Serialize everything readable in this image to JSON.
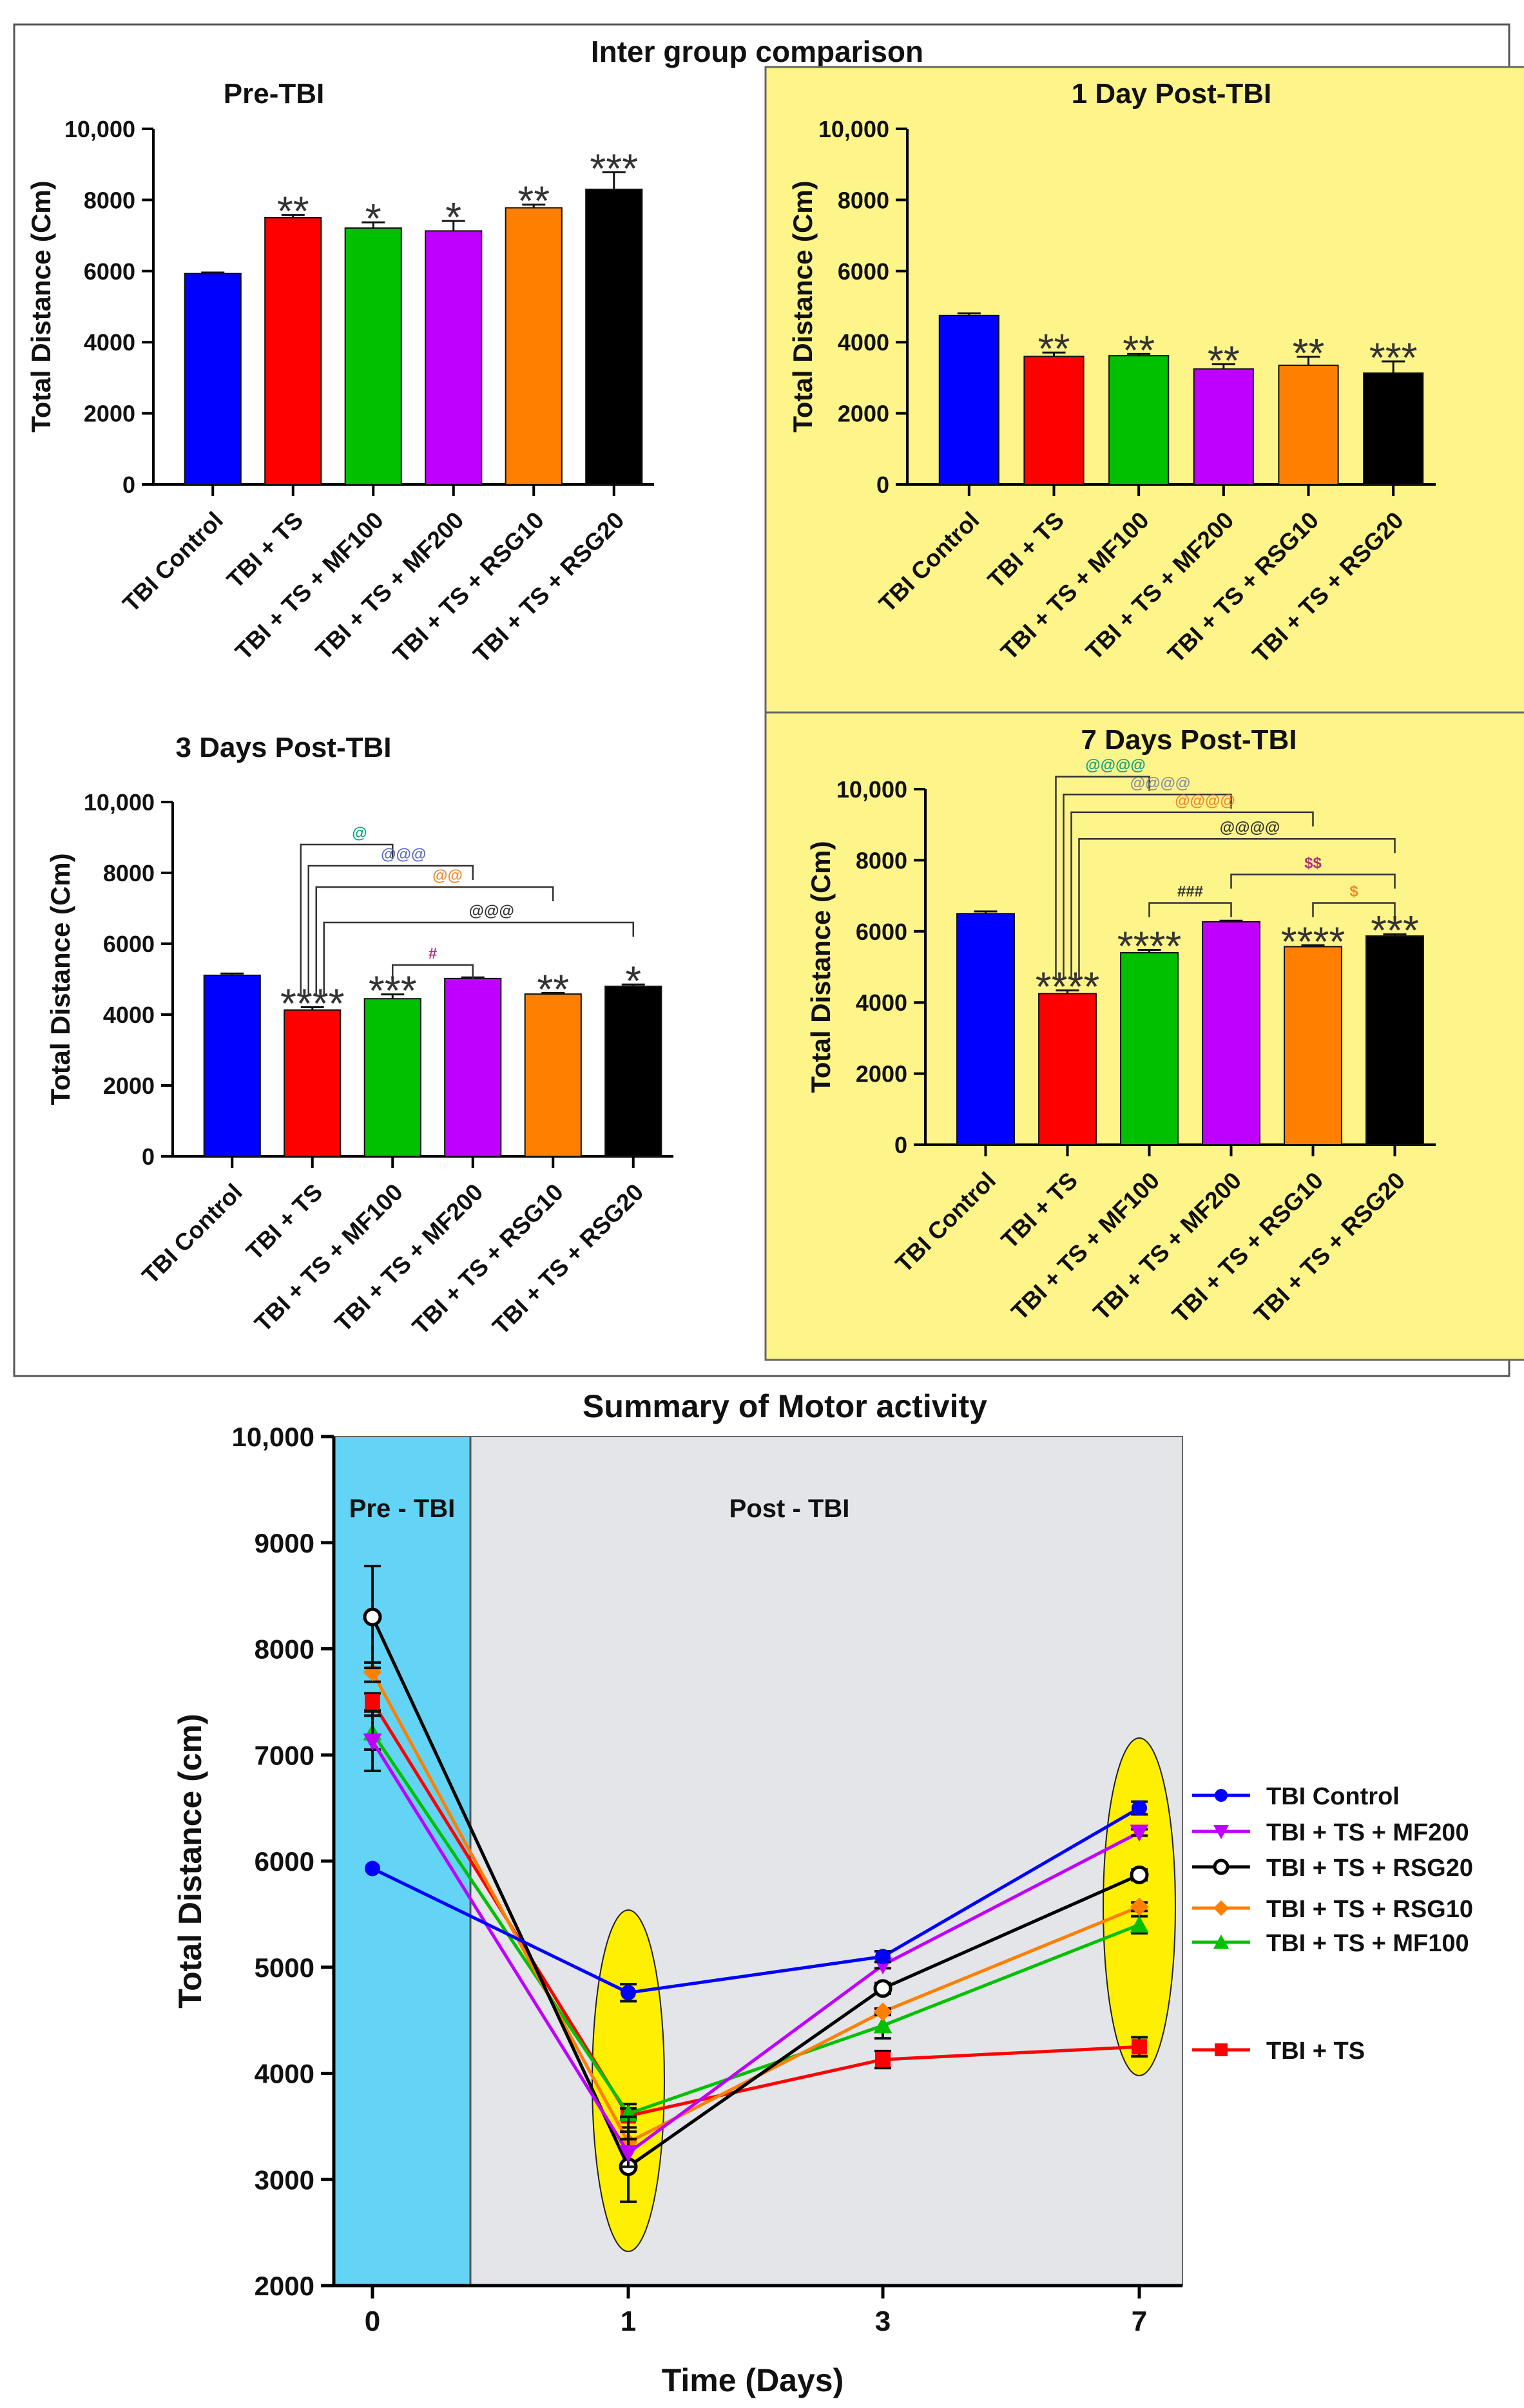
{
  "figure": {
    "top_title": "Inter group comparison",
    "colors": {
      "TBI Control": "#0000ff",
      "TBI + TS": "#ff0000",
      "TBI + TS + MF100": "#00c000",
      "TBI + TS + MF200": "#c000ff",
      "TBI + TS + RSG10": "#ff8000",
      "TBI + TS + RSG20": "#000000",
      "panel_highlight": "#fdf48a",
      "pre_region": "#63d4f6",
      "post_region": "#e3e5e8",
      "ellipse": "#ffef00"
    }
  },
  "chart_data": [
    {
      "type": "bar",
      "title": "Pre-TBI",
      "ylabel": "Total Distance (Cm)",
      "ylim": [
        0,
        10000
      ],
      "yticks": [
        "0",
        "2000",
        "4000",
        "6000",
        "8000",
        "10,000"
      ],
      "categories": [
        "TBI Control",
        "TBI + TS",
        "TBI + TS + MF100",
        "TBI + TS + MF200",
        "TBI + TS + RSG10",
        "TBI + TS + RSG20"
      ],
      "values": [
        5930,
        7500,
        7210,
        7130,
        7780,
        8300
      ],
      "errors": [
        30,
        80,
        160,
        280,
        90,
        480
      ],
      "stars": [
        "",
        "**",
        "*",
        "*",
        "**",
        "***"
      ],
      "brackets": []
    },
    {
      "type": "bar",
      "title": "1 Day Post-TBI",
      "ylabel": "Total Distance (Cm)",
      "ylim": [
        0,
        10000
      ],
      "yticks": [
        "0",
        "2000",
        "4000",
        "6000",
        "8000",
        "10,000"
      ],
      "categories": [
        "TBI Control",
        "TBI + TS",
        "TBI + TS + MF100",
        "TBI + TS + MF200",
        "TBI + TS + RSG10",
        "TBI + TS + RSG20"
      ],
      "values": [
        4750,
        3600,
        3620,
        3250,
        3350,
        3130
      ],
      "errors": [
        60,
        110,
        50,
        130,
        240,
        330
      ],
      "stars": [
        "",
        "**",
        "**",
        "**",
        "**",
        "***"
      ],
      "brackets": []
    },
    {
      "type": "bar",
      "title": "3 Days Post-TBI",
      "ylabel": "Total Distance (Cm)",
      "ylim": [
        0,
        10000
      ],
      "yticks": [
        "0",
        "2000",
        "4000",
        "6000",
        "8000",
        "10,000"
      ],
      "categories": [
        "TBI Control",
        "TBI + TS",
        "TBI + TS + MF100",
        "TBI + TS + MF200",
        "TBI + TS + RSG10",
        "TBI + TS + RSG20"
      ],
      "values": [
        5110,
        4130,
        4450,
        5020,
        4580,
        4800
      ],
      "errors": [
        50,
        80,
        120,
        30,
        30,
        50
      ],
      "stars": [
        "",
        "****",
        "***",
        "",
        "**",
        "*"
      ],
      "brackets": [
        {
          "from": 1,
          "to": 2,
          "y": 8800,
          "label": "@",
          "color": "#13a37f"
        },
        {
          "from": 1,
          "to": 3,
          "y": 8200,
          "label": "@@@",
          "color": "#5f6cc0"
        },
        {
          "from": 1,
          "to": 4,
          "y": 7600,
          "label": "@@",
          "color": "#f0892c"
        },
        {
          "from": 1,
          "to": 5,
          "y": 6600,
          "label": "@@@",
          "color": "#333333"
        },
        {
          "from": 2,
          "to": 3,
          "y": 5400,
          "label": "#",
          "color": "#b0337e"
        }
      ]
    },
    {
      "type": "bar",
      "title": "7 Days Post-TBI",
      "ylabel": "Total Distance (Cm)",
      "ylim": [
        0,
        10000
      ],
      "yticks": [
        "0",
        "2000",
        "4000",
        "6000",
        "8000",
        "10,000"
      ],
      "categories": [
        "TBI Control",
        "TBI + TS",
        "TBI + TS + MF100",
        "TBI + TS + MF200",
        "TBI + TS + RSG10",
        "TBI + TS + RSG20"
      ],
      "values": [
        6500,
        4250,
        5400,
        6270,
        5570,
        5870
      ],
      "errors": [
        60,
        90,
        80,
        30,
        40,
        50
      ],
      "stars": [
        "",
        "****",
        "****",
        "",
        "****",
        "***"
      ],
      "brackets": [
        {
          "from": 1,
          "to": 2,
          "y": 10350,
          "label": "@@@@",
          "color": "#13a37f"
        },
        {
          "from": 1,
          "to": 3,
          "y": 9850,
          "label": "@@@@",
          "color": "#8a8fa0"
        },
        {
          "from": 1,
          "to": 4,
          "y": 9350,
          "label": "@@@@",
          "color": "#f0892c"
        },
        {
          "from": 1,
          "to": 5,
          "y": 8600,
          "label": "@@@@",
          "color": "#333333"
        },
        {
          "from": 2,
          "to": 3,
          "y": 6800,
          "label": "###",
          "color": "#333333"
        },
        {
          "from": 3,
          "to": 5,
          "y": 7600,
          "label": "$$",
          "color": "#b0337e"
        },
        {
          "from": 4,
          "to": 5,
          "y": 6800,
          "label": "$",
          "color": "#f0892c"
        }
      ]
    },
    {
      "type": "line",
      "title": "Summary of Motor activity",
      "xlabel": "Time (Days)",
      "ylabel": "Total Distance (cm)",
      "ylim": [
        2000,
        10000
      ],
      "yticks": [
        "2000",
        "3000",
        "4000",
        "5000",
        "6000",
        "7000",
        "8000",
        "9000",
        "10,000"
      ],
      "x": [
        "0",
        "1",
        "3",
        "7"
      ],
      "region_labels": [
        "Pre - TBI",
        "Post - TBI"
      ],
      "series": [
        {
          "name": "TBI Control",
          "values": [
            5930,
            4760,
            5100,
            6500
          ],
          "errors": [
            0,
            80,
            50,
            60
          ],
          "marker": "circle"
        },
        {
          "name": "TBI + TS + MF200",
          "values": [
            7130,
            3250,
            5020,
            6270
          ],
          "errors": [
            280,
            130,
            30,
            30
          ],
          "marker": "triangle-down"
        },
        {
          "name": "TBI + TS + RSG20",
          "values": [
            8300,
            3120,
            4800,
            5870
          ],
          "errors": [
            480,
            330,
            50,
            50
          ],
          "marker": "open-circle"
        },
        {
          "name": "TBI + TS + RSG10",
          "values": [
            7780,
            3350,
            4580,
            5570
          ],
          "errors": [
            90,
            240,
            30,
            40
          ],
          "marker": "diamond"
        },
        {
          "name": "TBI + TS + MF100",
          "values": [
            7210,
            3620,
            4450,
            5400
          ],
          "errors": [
            160,
            50,
            120,
            80
          ],
          "marker": "triangle-up"
        },
        {
          "name": "TBI + TS",
          "values": [
            7500,
            3600,
            4130,
            4250
          ],
          "errors": [
            80,
            110,
            80,
            90
          ],
          "marker": "square"
        }
      ]
    }
  ]
}
